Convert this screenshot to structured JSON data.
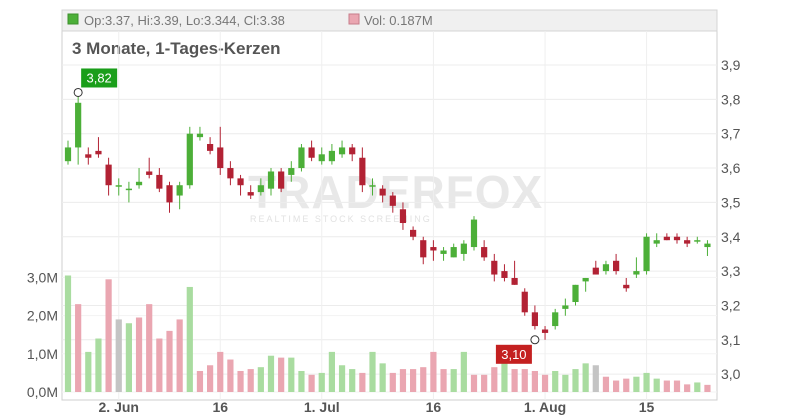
{
  "legend": {
    "price_text": "Op:3.37, Hi:3.39, Lo:3.344, Cl:3.38",
    "volume_text": "Vol: 0.187M"
  },
  "subtitle": "3 Monate, 1-Tages-Kerzen",
  "watermark": {
    "brand": "TRADERFOX",
    "tagline": "REALTIME STOCK SCREENING"
  },
  "colors": {
    "up": "#4caf38",
    "down": "#b22234",
    "vol_up": "#a9dca0",
    "vol_down": "#eaa6b1",
    "vol_neutral": "#c4c4c4",
    "max_badge": "#1a9e1a",
    "min_badge": "#c42020"
  },
  "chart_data": {
    "type": "candlestick",
    "y_ticks": [
      "3,9",
      "3,8",
      "3,7",
      "3,6",
      "3,5",
      "3,4",
      "3,3",
      "3,2",
      "3,1",
      "3,0"
    ],
    "volume_ticks": [
      "3,0M",
      "2,0M",
      "1,0M",
      "0,0M"
    ],
    "x_ticks": [
      {
        "label": "2. Jun",
        "index": 5
      },
      {
        "label": "16",
        "index": 15
      },
      {
        "label": "1. Jul",
        "index": 25
      },
      {
        "label": "16",
        "index": 36
      },
      {
        "label": "1. Aug",
        "index": 47
      },
      {
        "label": "15",
        "index": 57
      }
    ],
    "ylim": [
      2.97,
      3.93
    ],
    "volume_max_m": 3.05,
    "max_label": {
      "text": "3,82",
      "index": 1,
      "value": 3.82
    },
    "min_label": {
      "text": "3,10",
      "index": 46,
      "value": 3.1
    },
    "candles": [
      {
        "o": 3.62,
        "h": 3.68,
        "l": 3.61,
        "c": 3.66,
        "v": 3.05,
        "vc": "up"
      },
      {
        "o": 3.66,
        "h": 3.82,
        "l": 3.61,
        "c": 3.79,
        "v": 2.3,
        "vc": "down"
      },
      {
        "o": 3.64,
        "h": 3.66,
        "l": 3.61,
        "c": 3.63,
        "v": 1.05,
        "vc": "up"
      },
      {
        "o": 3.65,
        "h": 3.69,
        "l": 3.63,
        "c": 3.64,
        "v": 1.4,
        "vc": "up"
      },
      {
        "o": 3.61,
        "h": 3.63,
        "l": 3.52,
        "c": 3.55,
        "v": 2.95,
        "vc": "down"
      },
      {
        "o": 3.55,
        "h": 3.57,
        "l": 3.52,
        "c": 3.55,
        "v": 1.9,
        "vc": "neutral"
      },
      {
        "o": 3.54,
        "h": 3.56,
        "l": 3.5,
        "c": 3.54,
        "v": 1.8,
        "vc": "up"
      },
      {
        "o": 3.55,
        "h": 3.6,
        "l": 3.54,
        "c": 3.56,
        "v": 1.95,
        "vc": "down"
      },
      {
        "o": 3.59,
        "h": 3.63,
        "l": 3.57,
        "c": 3.58,
        "v": 2.3,
        "vc": "down"
      },
      {
        "o": 3.58,
        "h": 3.6,
        "l": 3.53,
        "c": 3.54,
        "v": 1.4,
        "vc": "down"
      },
      {
        "o": 3.55,
        "h": 3.56,
        "l": 3.47,
        "c": 3.5,
        "v": 1.6,
        "vc": "down"
      },
      {
        "o": 3.52,
        "h": 3.56,
        "l": 3.48,
        "c": 3.55,
        "v": 1.9,
        "vc": "down"
      },
      {
        "o": 3.55,
        "h": 3.72,
        "l": 3.54,
        "c": 3.7,
        "v": 2.75,
        "vc": "up"
      },
      {
        "o": 3.69,
        "h": 3.72,
        "l": 3.68,
        "c": 3.7,
        "v": 0.55,
        "vc": "down"
      },
      {
        "o": 3.67,
        "h": 3.69,
        "l": 3.64,
        "c": 3.65,
        "v": 0.7,
        "vc": "down"
      },
      {
        "o": 3.66,
        "h": 3.72,
        "l": 3.58,
        "c": 3.6,
        "v": 1.05,
        "vc": "down"
      },
      {
        "o": 3.6,
        "h": 3.62,
        "l": 3.55,
        "c": 3.57,
        "v": 0.85,
        "vc": "down"
      },
      {
        "o": 3.57,
        "h": 3.58,
        "l": 3.52,
        "c": 3.55,
        "v": 0.55,
        "vc": "down"
      },
      {
        "o": 3.53,
        "h": 3.55,
        "l": 3.51,
        "c": 3.52,
        "v": 0.6,
        "vc": "down"
      },
      {
        "o": 3.53,
        "h": 3.57,
        "l": 3.52,
        "c": 3.55,
        "v": 0.65,
        "vc": "up"
      },
      {
        "o": 3.54,
        "h": 3.6,
        "l": 3.52,
        "c": 3.59,
        "v": 0.95,
        "vc": "up"
      },
      {
        "o": 3.59,
        "h": 3.6,
        "l": 3.53,
        "c": 3.54,
        "v": 0.9,
        "vc": "down"
      },
      {
        "o": 3.58,
        "h": 3.62,
        "l": 3.56,
        "c": 3.6,
        "v": 0.9,
        "vc": "up"
      },
      {
        "o": 3.6,
        "h": 3.67,
        "l": 3.59,
        "c": 3.66,
        "v": 0.55,
        "vc": "up"
      },
      {
        "o": 3.66,
        "h": 3.68,
        "l": 3.62,
        "c": 3.63,
        "v": 0.45,
        "vc": "down"
      },
      {
        "o": 3.62,
        "h": 3.66,
        "l": 3.61,
        "c": 3.64,
        "v": 0.5,
        "vc": "up"
      },
      {
        "o": 3.62,
        "h": 3.67,
        "l": 3.61,
        "c": 3.65,
        "v": 1.05,
        "vc": "up"
      },
      {
        "o": 3.64,
        "h": 3.68,
        "l": 3.63,
        "c": 3.66,
        "v": 0.7,
        "vc": "up"
      },
      {
        "o": 3.66,
        "h": 3.67,
        "l": 3.62,
        "c": 3.64,
        "v": 0.6,
        "vc": "up"
      },
      {
        "o": 3.63,
        "h": 3.66,
        "l": 3.53,
        "c": 3.55,
        "v": 0.5,
        "vc": "down"
      },
      {
        "o": 3.55,
        "h": 3.57,
        "l": 3.52,
        "c": 3.55,
        "v": 1.05,
        "vc": "up"
      },
      {
        "o": 3.54,
        "h": 3.55,
        "l": 3.5,
        "c": 3.52,
        "v": 0.75,
        "vc": "up"
      },
      {
        "o": 3.52,
        "h": 3.53,
        "l": 3.47,
        "c": 3.49,
        "v": 0.5,
        "vc": "down"
      },
      {
        "o": 3.48,
        "h": 3.5,
        "l": 3.42,
        "c": 3.44,
        "v": 0.6,
        "vc": "down"
      },
      {
        "o": 3.42,
        "h": 3.43,
        "l": 3.39,
        "c": 3.4,
        "v": 0.6,
        "vc": "down"
      },
      {
        "o": 3.39,
        "h": 3.4,
        "l": 3.32,
        "c": 3.34,
        "v": 0.65,
        "vc": "down"
      },
      {
        "o": 3.37,
        "h": 3.39,
        "l": 3.33,
        "c": 3.36,
        "v": 1.05,
        "vc": "down"
      },
      {
        "o": 3.35,
        "h": 3.37,
        "l": 3.33,
        "c": 3.36,
        "v": 0.6,
        "vc": "down"
      },
      {
        "o": 3.34,
        "h": 3.38,
        "l": 3.34,
        "c": 3.37,
        "v": 0.6,
        "vc": "up"
      },
      {
        "o": 3.35,
        "h": 3.39,
        "l": 3.33,
        "c": 3.38,
        "v": 1.05,
        "vc": "up"
      },
      {
        "o": 3.37,
        "h": 3.46,
        "l": 3.36,
        "c": 3.45,
        "v": 0.45,
        "vc": "down"
      },
      {
        "o": 3.37,
        "h": 3.39,
        "l": 3.33,
        "c": 3.34,
        "v": 0.45,
        "vc": "down"
      },
      {
        "o": 3.33,
        "h": 3.35,
        "l": 3.27,
        "c": 3.29,
        "v": 0.65,
        "vc": "down"
      },
      {
        "o": 3.3,
        "h": 3.32,
        "l": 3.27,
        "c": 3.28,
        "v": 1.05,
        "vc": "up"
      },
      {
        "o": 3.28,
        "h": 3.33,
        "l": 3.26,
        "c": 3.26,
        "v": 0.6,
        "vc": "down"
      },
      {
        "o": 3.24,
        "h": 3.25,
        "l": 3.17,
        "c": 3.18,
        "v": 0.6,
        "vc": "down"
      },
      {
        "o": 3.18,
        "h": 3.2,
        "l": 3.13,
        "c": 3.14,
        "v": 0.55,
        "vc": "down"
      },
      {
        "o": 3.13,
        "h": 3.14,
        "l": 3.1,
        "c": 3.12,
        "v": 0.45,
        "vc": "down"
      },
      {
        "o": 3.14,
        "h": 3.19,
        "l": 3.13,
        "c": 3.18,
        "v": 0.55,
        "vc": "up"
      },
      {
        "o": 3.19,
        "h": 3.22,
        "l": 3.17,
        "c": 3.2,
        "v": 0.45,
        "vc": "up"
      },
      {
        "o": 3.21,
        "h": 3.26,
        "l": 3.2,
        "c": 3.26,
        "v": 0.6,
        "vc": "up"
      },
      {
        "o": 3.27,
        "h": 3.28,
        "l": 3.24,
        "c": 3.28,
        "v": 0.75,
        "vc": "up"
      },
      {
        "o": 3.31,
        "h": 3.33,
        "l": 3.29,
        "c": 3.29,
        "v": 0.7,
        "vc": "neutral"
      },
      {
        "o": 3.3,
        "h": 3.33,
        "l": 3.29,
        "c": 3.32,
        "v": 0.4,
        "vc": "down"
      },
      {
        "o": 3.33,
        "h": 3.35,
        "l": 3.29,
        "c": 3.3,
        "v": 0.3,
        "vc": "down"
      },
      {
        "o": 3.26,
        "h": 3.28,
        "l": 3.24,
        "c": 3.25,
        "v": 0.35,
        "vc": "down"
      },
      {
        "o": 3.29,
        "h": 3.34,
        "l": 3.28,
        "c": 3.3,
        "v": 0.4,
        "vc": "up"
      },
      {
        "o": 3.3,
        "h": 3.41,
        "l": 3.29,
        "c": 3.4,
        "v": 0.5,
        "vc": "up"
      },
      {
        "o": 3.38,
        "h": 3.41,
        "l": 3.37,
        "c": 3.39,
        "v": 0.35,
        "vc": "up"
      },
      {
        "o": 3.4,
        "h": 3.41,
        "l": 3.39,
        "c": 3.39,
        "v": 0.3,
        "vc": "down"
      },
      {
        "o": 3.4,
        "h": 3.41,
        "l": 3.38,
        "c": 3.39,
        "v": 0.3,
        "vc": "down"
      },
      {
        "o": 3.39,
        "h": 3.4,
        "l": 3.37,
        "c": 3.38,
        "v": 0.2,
        "vc": "down"
      },
      {
        "o": 3.39,
        "h": 3.4,
        "l": 3.38,
        "c": 3.39,
        "v": 0.25,
        "vc": "up"
      },
      {
        "o": 3.37,
        "h": 3.39,
        "l": 3.344,
        "c": 3.38,
        "v": 0.187,
        "vc": "down"
      }
    ]
  }
}
